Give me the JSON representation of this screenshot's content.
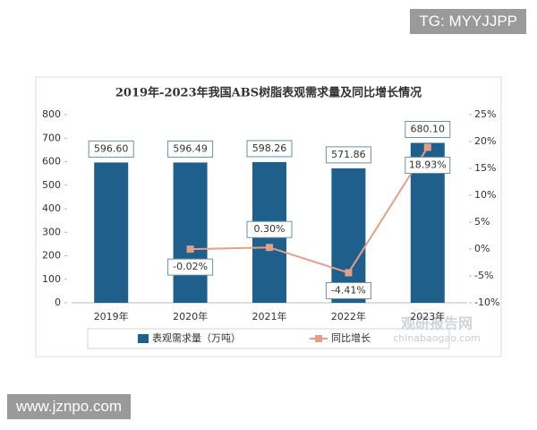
{
  "chart_data": {
    "type": "bar-line",
    "title": "2019年-2023年我国ABS树脂表观需求量及同比增长情况",
    "categories": [
      "2019年",
      "2020年",
      "2021年",
      "2022年",
      "2023年"
    ],
    "series": [
      {
        "name": "表观需求量（万吨）",
        "color": "#1f5f8b",
        "type": "bar",
        "values": [
          596.6,
          596.49,
          598.26,
          571.86,
          680.1
        ],
        "value_labels": [
          "596.60",
          "596.49",
          "598.26",
          "571.86",
          "680.10"
        ]
      },
      {
        "name": "同比增长",
        "color": "#e3a088",
        "type": "line",
        "axis": "y2",
        "values": [
          null,
          -0.02,
          0.3,
          -4.41,
          18.93
        ],
        "value_labels": [
          null,
          "-0.02%",
          "0.30%",
          "-4.41%",
          "18.93%"
        ]
      }
    ],
    "ylim": [
      0,
      800
    ],
    "yticks": [
      0,
      100,
      200,
      300,
      400,
      500,
      600,
      700,
      800
    ],
    "y2lim": [
      -10,
      25
    ],
    "y2ticks": [
      {
        "value": -10,
        "label": "-10%"
      },
      {
        "value": -5,
        "label": "-5%"
      },
      {
        "value": 0,
        "label": "0%"
      },
      {
        "value": 5,
        "label": "5%"
      },
      {
        "value": 10,
        "label": "10%"
      },
      {
        "value": 15,
        "label": "15%"
      },
      {
        "value": 20,
        "label": "20%"
      },
      {
        "value": 25,
        "label": "25%"
      }
    ],
    "grid": false,
    "legend": "bottom"
  },
  "watermarks": {
    "top": "TG: MYYJJPP",
    "bottom": "www.jznpo.com",
    "brand": "观研报告网",
    "brand_url": "chinabaogao.com"
  }
}
